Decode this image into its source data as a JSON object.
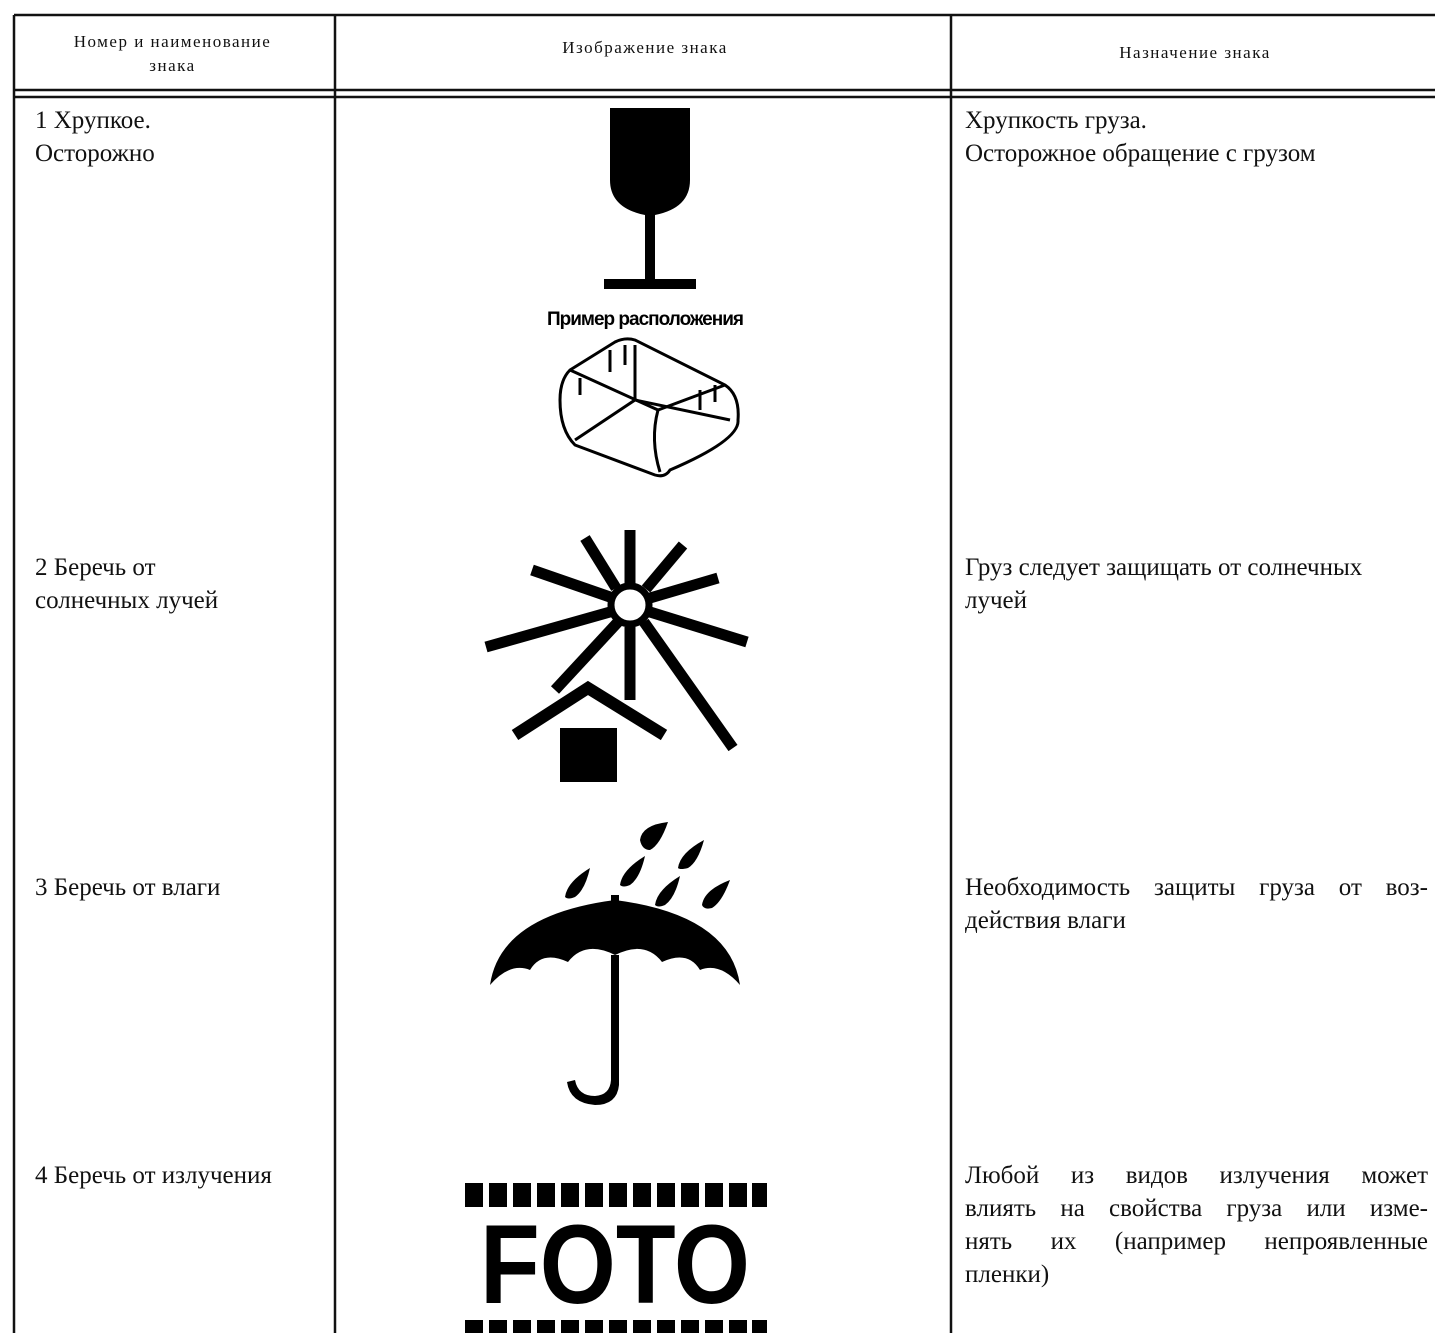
{
  "table": {
    "headers": [
      [
        "Номер и наименование",
        "знака"
      ],
      [
        "Изображение знака"
      ],
      [
        "Назначение знака"
      ]
    ],
    "rows": [
      {
        "name": [
          "1 Хрупкое.",
          "Осторожно"
        ],
        "image_caption": "Пример расположения",
        "purpose": [
          "Хрупкость груза.",
          "Осторожное обращение с грузом"
        ]
      },
      {
        "name": [
          "2 Беречь от",
          "солнечных лучей"
        ],
        "purpose": [
          "Груз следует защищать от солнечных",
          "лучей"
        ]
      },
      {
        "name": [
          "3 Беречь от влаги"
        ],
        "purpose": [
          "Необходимость защиты груза от воз-",
          "действия влаги"
        ]
      },
      {
        "name": [
          "4 Беречь от излучения"
        ],
        "image_caption": "FOTO",
        "purpose": [
          "Любой из видов излучения может",
          "влиять на свойства груза или изме-",
          "нять их (например непроявленные",
          "пленки)"
        ]
      }
    ]
  }
}
